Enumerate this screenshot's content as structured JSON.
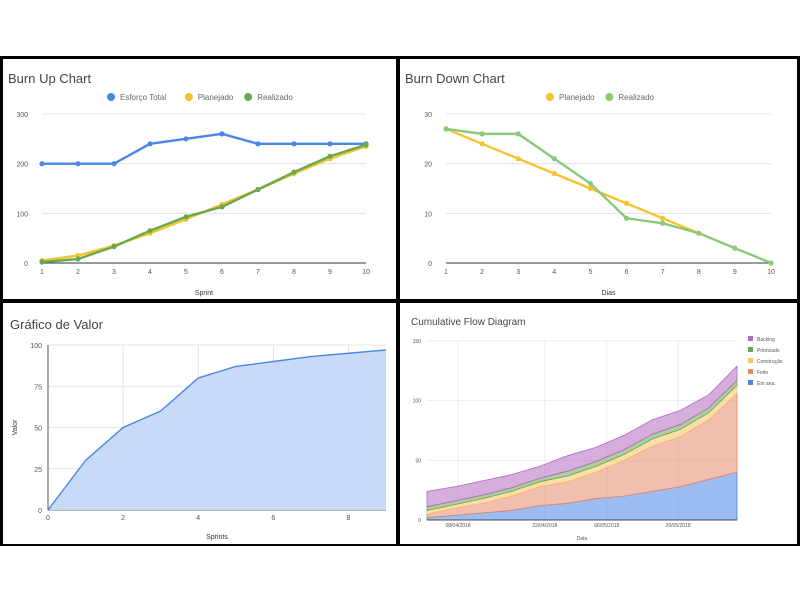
{
  "chart_data": [
    {
      "type": "line",
      "title": "Burn Up Chart",
      "xlabel": "Sprint",
      "ylabel": "",
      "x": [
        1,
        2,
        3,
        4,
        5,
        6,
        7,
        8,
        9,
        10
      ],
      "ylim": [
        0,
        300
      ],
      "yticks": [
        "0",
        "100",
        "200",
        "300"
      ],
      "legend": "top",
      "series": [
        {
          "name": "Esforço Total",
          "color": "#4a86e8",
          "values": [
            200,
            200,
            200,
            240,
            250,
            260,
            240,
            240,
            240,
            240
          ]
        },
        {
          "name": "Planejado",
          "color": "#f4c430",
          "values": [
            5,
            15,
            35,
            60,
            88,
            118,
            148,
            180,
            210,
            235
          ]
        },
        {
          "name": "Realizado",
          "color": "#6aa84f",
          "values": [
            2,
            8,
            33,
            65,
            93,
            113,
            148,
            183,
            215,
            238
          ]
        }
      ]
    },
    {
      "type": "line",
      "title": "Burn Down Chart",
      "xlabel": "Dias",
      "ylabel": "",
      "x": [
        1,
        2,
        3,
        4,
        5,
        6,
        7,
        8,
        9,
        10
      ],
      "ylim": [
        0,
        30
      ],
      "yticks": [
        "0",
        "10",
        "20",
        "30"
      ],
      "legend": "top",
      "series": [
        {
          "name": "Planejado",
          "color": "#f4c430",
          "values": [
            27,
            24,
            21,
            18,
            15,
            12,
            9,
            6,
            null,
            null
          ]
        },
        {
          "name": "Realizado",
          "color": "#8bc97a",
          "values": [
            27,
            26,
            26,
            21,
            16,
            9,
            8,
            6,
            3,
            0
          ]
        }
      ]
    },
    {
      "type": "area",
      "title": "Gráfico de Valor",
      "xlabel": "Sprints",
      "ylabel": "Valor",
      "x": [
        0,
        1,
        2,
        3,
        4,
        5,
        6,
        7,
        8,
        9
      ],
      "xlim": [
        0,
        9
      ],
      "ylim": [
        0,
        100
      ],
      "yticks": [
        "0",
        "25",
        "50",
        "75",
        "100"
      ],
      "xticks": [
        "0",
        "2",
        "4",
        "6",
        "8"
      ],
      "series": [
        {
          "name": "",
          "color": "#4a86e8",
          "values": [
            0,
            30,
            50,
            60,
            80,
            87,
            90,
            93,
            95,
            97
          ]
        }
      ]
    },
    {
      "type": "area",
      "title": "Cumulative Flow Diagram",
      "xlabel": "Data",
      "ylabel": "",
      "ylim": [
        0,
        150
      ],
      "yticks": [
        "0",
        "50",
        "100",
        "150"
      ],
      "xticks": [
        "08/04/2018",
        "22/04/2018",
        "06/05/2018",
        "20/05/2018"
      ],
      "legend": "right",
      "stacked": true,
      "series": [
        {
          "name": "Em ana.",
          "color": "#4a86e8",
          "values": [
            2,
            4,
            6,
            8,
            12,
            14,
            18,
            20,
            24,
            28,
            34,
            40
          ]
        },
        {
          "name": "Feito",
          "color": "#e8896a",
          "values": [
            3,
            6,
            8,
            12,
            16,
            18,
            22,
            30,
            38,
            42,
            50,
            66
          ]
        },
        {
          "name": "Construção",
          "color": "#f6c26b",
          "values": [
            3,
            3,
            4,
            4,
            4,
            5,
            5,
            5,
            6,
            6,
            6,
            7
          ]
        },
        {
          "name": "Priorizado",
          "color": "#6aa84f",
          "values": [
            3,
            3,
            3,
            3,
            3,
            4,
            4,
            4,
            4,
            4,
            4,
            4
          ]
        },
        {
          "name": "Backlog",
          "color": "#b36bc2",
          "values": [
            13,
            12,
            12,
            11,
            10,
            13,
            12,
            12,
            12,
            12,
            11,
            12
          ]
        }
      ]
    }
  ]
}
